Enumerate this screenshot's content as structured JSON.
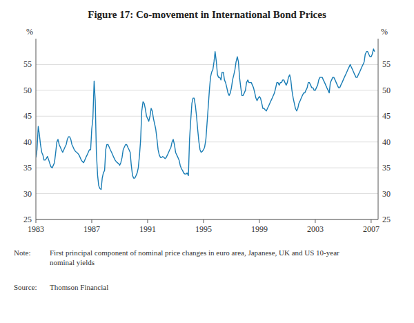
{
  "chart_data": {
    "type": "line",
    "title": "Figure 17: Co-movement in International Bond Prices",
    "ylabel": "%",
    "y2label": "%",
    "note_label": "Note:",
    "note_text": "First principal component of nominal price changes in euro area, Japanese, UK and US 10-year\nnominal yields",
    "source_label": "Source:",
    "source_text": "Thomson Financial",
    "xlim": [
      1983,
      2007.5
    ],
    "xticks": [
      1983,
      1987,
      1991,
      1995,
      1999,
      2003,
      2007
    ],
    "ylim": [
      25,
      60
    ],
    "yticks": [
      25,
      30,
      35,
      40,
      45,
      50,
      55
    ],
    "y2lim": [
      25,
      60
    ],
    "y2ticks": [
      25,
      30,
      35,
      40,
      45,
      50,
      55
    ],
    "grid": true,
    "color": "#1a7db5",
    "x": [
      1983.0,
      1983.08,
      1983.17,
      1983.25,
      1983.33,
      1983.42,
      1983.5,
      1983.58,
      1983.67,
      1983.75,
      1983.83,
      1983.92,
      1984.0,
      1984.08,
      1984.17,
      1984.25,
      1984.33,
      1984.42,
      1984.5,
      1984.58,
      1984.67,
      1984.75,
      1984.83,
      1984.92,
      1985.0,
      1985.08,
      1985.17,
      1985.25,
      1985.33,
      1985.42,
      1985.5,
      1985.58,
      1985.67,
      1985.75,
      1985.83,
      1985.92,
      1986.0,
      1986.08,
      1986.17,
      1986.25,
      1986.33,
      1986.42,
      1986.5,
      1986.58,
      1986.67,
      1986.75,
      1986.83,
      1986.92,
      1987.0,
      1987.08,
      1987.17,
      1987.25,
      1987.33,
      1987.42,
      1987.5,
      1987.58,
      1987.67,
      1987.75,
      1987.83,
      1987.92,
      1988.0,
      1988.08,
      1988.17,
      1988.25,
      1988.33,
      1988.42,
      1988.5,
      1988.58,
      1988.67,
      1988.75,
      1988.83,
      1988.92,
      1989.0,
      1989.08,
      1989.17,
      1989.25,
      1989.33,
      1989.42,
      1989.5,
      1989.58,
      1989.67,
      1989.75,
      1989.83,
      1989.92,
      1990.0,
      1990.08,
      1990.17,
      1990.25,
      1990.33,
      1990.42,
      1990.5,
      1990.58,
      1990.67,
      1990.75,
      1990.83,
      1990.92,
      1991.0,
      1991.08,
      1991.17,
      1991.25,
      1991.33,
      1991.42,
      1991.5,
      1991.58,
      1991.67,
      1991.75,
      1991.83,
      1991.92,
      1992.0,
      1992.08,
      1992.17,
      1992.25,
      1992.33,
      1992.42,
      1992.5,
      1992.58,
      1992.67,
      1992.75,
      1992.83,
      1992.92,
      1993.0,
      1993.08,
      1993.17,
      1993.25,
      1993.33,
      1993.42,
      1993.5,
      1993.58,
      1993.67,
      1993.75,
      1993.83,
      1993.92,
      1994.0,
      1994.08,
      1994.17,
      1994.25,
      1994.33,
      1994.42,
      1994.5,
      1994.58,
      1994.67,
      1994.75,
      1994.83,
      1994.92,
      1995.0,
      1995.08,
      1995.17,
      1995.25,
      1995.33,
      1995.42,
      1995.5,
      1995.58,
      1995.67,
      1995.75,
      1995.83,
      1995.92,
      1996.0,
      1996.08,
      1996.17,
      1996.25,
      1996.33,
      1996.42,
      1996.5,
      1996.58,
      1996.67,
      1996.75,
      1996.83,
      1996.92,
      1997.0,
      1997.08,
      1997.17,
      1997.25,
      1997.33,
      1997.42,
      1997.5,
      1997.58,
      1997.67,
      1997.75,
      1997.83,
      1997.92,
      1998.0,
      1998.08,
      1998.17,
      1998.25,
      1998.33,
      1998.42,
      1998.5,
      1998.58,
      1998.67,
      1998.75,
      1998.83,
      1998.92,
      1999.0,
      1999.08,
      1999.17,
      1999.25,
      1999.33,
      1999.42,
      1999.5,
      1999.58,
      1999.67,
      1999.75,
      1999.83,
      1999.92,
      2000.0,
      2000.08,
      2000.17,
      2000.25,
      2000.33,
      2000.42,
      2000.5,
      2000.58,
      2000.67,
      2000.75,
      2000.83,
      2000.92,
      2001.0,
      2001.08,
      2001.17,
      2001.25,
      2001.33,
      2001.42,
      2001.5,
      2001.58,
      2001.67,
      2001.75,
      2001.83,
      2001.92,
      2002.0,
      2002.08,
      2002.17,
      2002.25,
      2002.33,
      2002.42,
      2002.5,
      2002.58,
      2002.67,
      2002.75,
      2002.83,
      2002.92,
      2003.0,
      2003.08,
      2003.17,
      2003.25,
      2003.33,
      2003.42,
      2003.5,
      2003.58,
      2003.67,
      2003.75,
      2003.83,
      2003.92,
      2004.0,
      2004.08,
      2004.17,
      2004.25,
      2004.33,
      2004.42,
      2004.5,
      2004.58,
      2004.67,
      2004.75,
      2004.83,
      2004.92,
      2005.0,
      2005.08,
      2005.17,
      2005.25,
      2005.33,
      2005.42,
      2005.5,
      2005.58,
      2005.67,
      2005.75,
      2005.83,
      2005.92,
      2006.0,
      2006.08,
      2006.17,
      2006.25,
      2006.33,
      2006.42,
      2006.5,
      2006.58,
      2006.67,
      2006.75,
      2006.83,
      2006.92,
      2007.0,
      2007.08,
      2007.17,
      2007.25
    ],
    "values": [
      37.0,
      38.5,
      43.0,
      41.5,
      39.5,
      38.0,
      37.5,
      36.5,
      36.5,
      36.8,
      37.2,
      36.5,
      35.8,
      35.2,
      35.0,
      35.5,
      36.0,
      38.0,
      40.0,
      40.5,
      39.5,
      39.0,
      38.5,
      38.0,
      38.5,
      39.0,
      39.5,
      40.5,
      41.0,
      41.0,
      40.5,
      39.5,
      39.0,
      38.5,
      38.2,
      38.0,
      37.8,
      37.5,
      37.0,
      36.5,
      36.2,
      36.0,
      36.5,
      37.0,
      37.5,
      38.0,
      38.5,
      38.5,
      42.5,
      44.5,
      51.8,
      48.0,
      38.0,
      33.5,
      31.5,
      31.0,
      30.8,
      33.0,
      34.0,
      34.5,
      38.5,
      39.5,
      39.5,
      39.0,
      38.5,
      38.0,
      37.5,
      37.0,
      36.5,
      36.2,
      36.0,
      35.8,
      35.5,
      36.0,
      37.0,
      38.5,
      39.0,
      39.5,
      39.5,
      39.0,
      38.5,
      38.0,
      35.5,
      33.5,
      33.0,
      33.0,
      33.5,
      34.0,
      35.0,
      37.5,
      40.5,
      46.0,
      47.8,
      47.5,
      46.5,
      45.0,
      44.5,
      44.0,
      45.0,
      46.5,
      46.0,
      44.5,
      43.5,
      42.5,
      40.5,
      38.5,
      37.5,
      37.0,
      37.0,
      37.2,
      37.0,
      36.8,
      37.0,
      37.5,
      38.0,
      38.5,
      39.0,
      40.0,
      40.5,
      39.5,
      38.0,
      37.5,
      37.0,
      36.5,
      35.5,
      34.8,
      34.5,
      34.0,
      33.8,
      33.8,
      34.0,
      33.5,
      40.5,
      44.0,
      47.5,
      48.5,
      48.5,
      47.0,
      45.0,
      42.5,
      40.0,
      38.5,
      38.0,
      38.2,
      38.5,
      39.0,
      40.5,
      43.5,
      46.5,
      50.0,
      52.5,
      53.5,
      54.0,
      55.5,
      57.5,
      55.5,
      53.0,
      52.5,
      52.5,
      52.0,
      53.5,
      53.5,
      52.0,
      51.5,
      50.5,
      49.5,
      49.0,
      49.5,
      50.5,
      52.0,
      53.0,
      54.0,
      55.5,
      56.5,
      55.5,
      52.5,
      50.5,
      49.0,
      49.0,
      49.5,
      50.0,
      51.5,
      52.0,
      51.5,
      51.5,
      51.5,
      51.0,
      50.5,
      49.5,
      48.5,
      48.0,
      48.5,
      48.8,
      48.5,
      47.5,
      46.5,
      46.5,
      46.2,
      46.0,
      46.5,
      47.0,
      47.5,
      48.0,
      48.5,
      49.0,
      49.5,
      50.5,
      51.5,
      51.5,
      51.0,
      51.5,
      51.5,
      52.0,
      52.0,
      51.5,
      51.0,
      51.5,
      52.5,
      53.0,
      52.0,
      50.0,
      48.5,
      47.5,
      46.5,
      46.0,
      46.5,
      47.5,
      48.0,
      48.5,
      49.0,
      49.5,
      49.5,
      50.0,
      50.5,
      51.5,
      51.5,
      51.0,
      50.5,
      50.5,
      50.0,
      50.0,
      50.5,
      51.0,
      52.0,
      52.5,
      52.5,
      52.5,
      52.0,
      51.5,
      51.0,
      50.5,
      50.0,
      49.5,
      51.5,
      52.0,
      52.5,
      52.5,
      52.0,
      51.5,
      51.0,
      50.5,
      50.5,
      51.0,
      51.5,
      52.0,
      52.5,
      53.0,
      53.5,
      54.0,
      54.5,
      55.0,
      54.5,
      54.0,
      53.5,
      53.0,
      52.5,
      52.5,
      53.0,
      53.5,
      54.0,
      54.5,
      55.0,
      55.5,
      57.0,
      57.5,
      57.5,
      57.0,
      56.5,
      56.5,
      57.0,
      58.0,
      57.5
    ]
  }
}
